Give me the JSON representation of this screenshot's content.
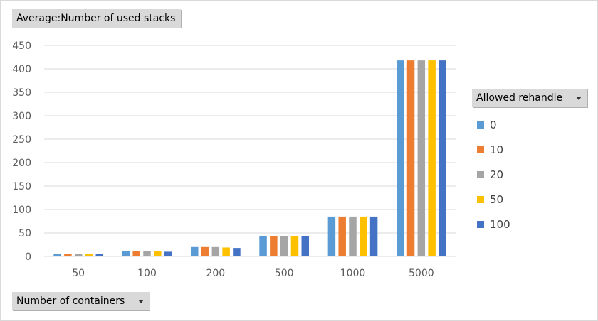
{
  "value_field": {
    "label": "Average:Number of used stacks"
  },
  "legend_field": {
    "label": "Allowed rehandle"
  },
  "axis_field": {
    "label": "Number of containers"
  },
  "chart_data": {
    "type": "bar",
    "title": "",
    "xlabel": "",
    "ylabel": "",
    "ylim": [
      0,
      450
    ],
    "yticks": [
      0,
      50,
      100,
      150,
      200,
      250,
      300,
      350,
      400,
      450
    ],
    "grid": true,
    "legend_position": "right",
    "categories": [
      "50",
      "100",
      "200",
      "500",
      "1000",
      "5000"
    ],
    "series": [
      {
        "name": "0",
        "color": "#5B9BD5",
        "values": [
          6,
          11,
          20,
          44,
          85,
          418
        ]
      },
      {
        "name": "10",
        "color": "#ED7D31",
        "values": [
          6,
          11,
          20,
          44,
          85,
          418
        ]
      },
      {
        "name": "20",
        "color": "#A5A5A5",
        "values": [
          6,
          11,
          20,
          44,
          85,
          418
        ]
      },
      {
        "name": "50",
        "color": "#FFC000",
        "values": [
          5,
          11,
          19,
          44,
          85,
          418
        ]
      },
      {
        "name": "100",
        "color": "#4472C4",
        "values": [
          5,
          10,
          18,
          44,
          85,
          418
        ]
      }
    ]
  }
}
